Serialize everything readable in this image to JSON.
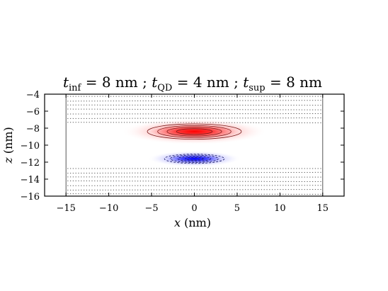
{
  "chart_data": {
    "type": "heatmap",
    "title": {
      "parts": [
        {
          "var": "t",
          "sub": "inf",
          "value": " = 8 nm ; "
        },
        {
          "var": "t",
          "sub": "QD",
          "value": " = 4 nm ; "
        },
        {
          "var": "t",
          "sub": "sup",
          "value": " = 8 nm"
        }
      ]
    },
    "xlabel": {
      "var": "x",
      "unit": " (nm)"
    },
    "ylabel": {
      "var": "z",
      "unit": " (nm)"
    },
    "xlim": [
      -17.5,
      17.5
    ],
    "ylim": [
      -16,
      -4
    ],
    "xticks": [
      -15,
      -10,
      -5,
      0,
      5,
      10,
      15
    ],
    "xtick_labels": [
      "−15",
      "−10",
      "−5",
      "0",
      "5",
      "10",
      "15"
    ],
    "yticks": [
      -4,
      -6,
      -8,
      -10,
      -12,
      -14,
      -16
    ],
    "ytick_labels": [
      "−4",
      "−6",
      "−8",
      "−10",
      "−12",
      "−14",
      "−16"
    ],
    "lobes": [
      {
        "name": "positive",
        "color": "#ff0000",
        "x_center": 0,
        "z_center": -8.4,
        "x_half_width": 5.5,
        "z_half_width": 0.9,
        "contour_levels": [
          1.0,
          0.78,
          0.58,
          0.38
        ]
      },
      {
        "name": "negative",
        "color": "#0000ff",
        "x_center": 0,
        "z_center": -11.6,
        "x_half_width": 3.5,
        "z_half_width": 0.55,
        "contour_levels": [
          1.0,
          0.8,
          0.55,
          0.3
        ]
      }
    ],
    "domain_edges_x": [
      -15,
      15
    ],
    "background_lines": {
      "color": "#555555",
      "style": "dotted",
      "upper_region_z": [
        -4.0,
        -7.6
      ],
      "lower_region_z": [
        -12.5,
        -16.0
      ]
    },
    "grid": false
  }
}
